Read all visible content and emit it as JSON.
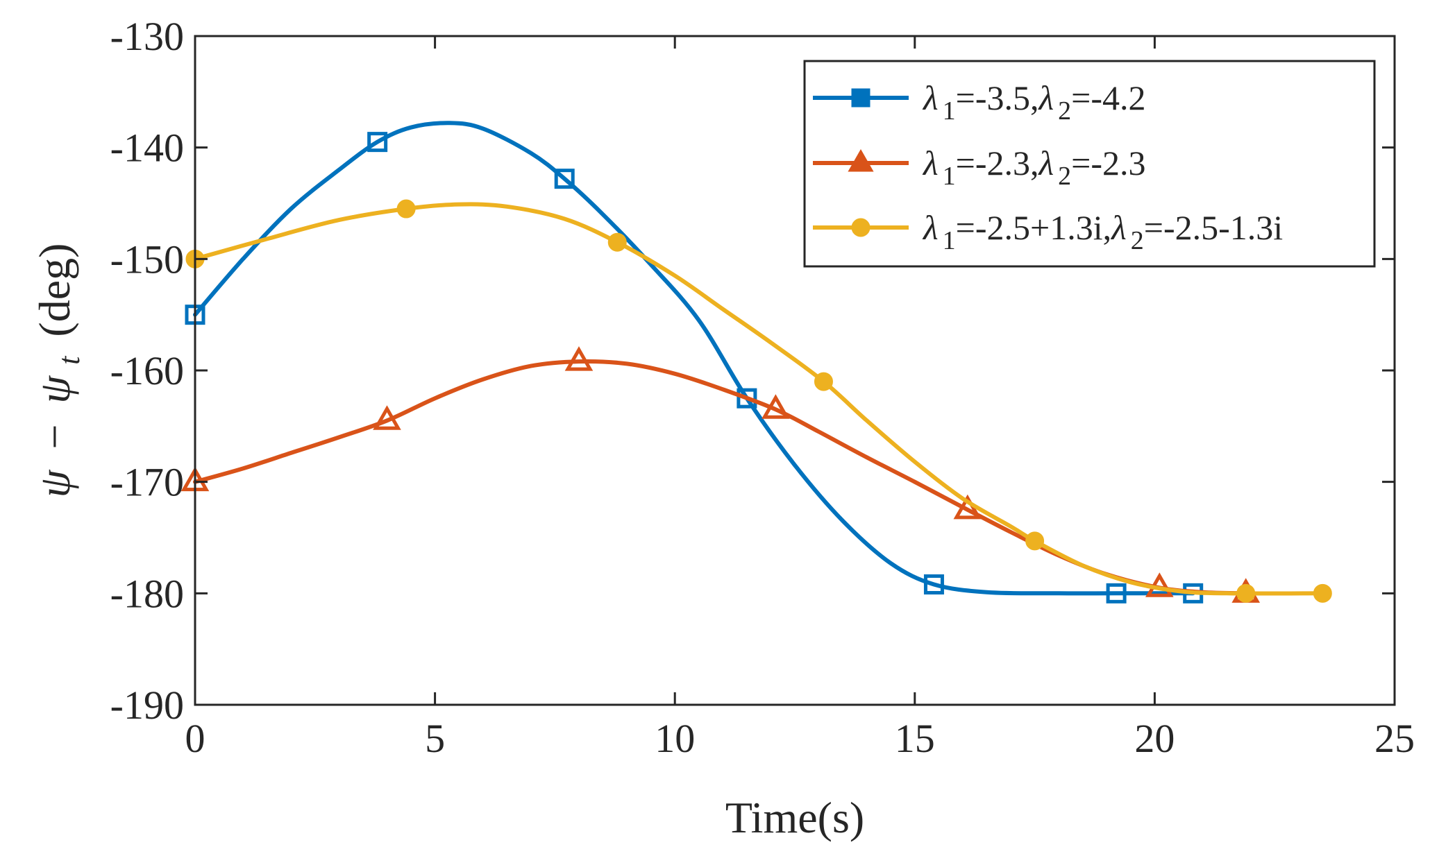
{
  "chart_data": {
    "type": "line",
    "title": "",
    "xlabel": "Time(s)",
    "ylabel": {
      "psi": "ψ",
      "minus": "−",
      "psi_t": "ψ",
      "sub": "t",
      "units": "(deg)"
    },
    "xlim": [
      0,
      25
    ],
    "ylim": [
      -190,
      -130
    ],
    "xticks": [
      0,
      5,
      10,
      15,
      20,
      25
    ],
    "xtick_labels": [
      "0",
      "5",
      "10",
      "15",
      "20",
      "25"
    ],
    "yticks": [
      -130,
      -140,
      -150,
      -160,
      -170,
      -180,
      -190
    ],
    "ytick_labels": [
      "-130",
      "-140",
      "-150",
      "-160",
      "-170",
      "-180",
      "-190"
    ],
    "grid": false,
    "legend_position": "top-right",
    "series": [
      {
        "name": "λ 1=-3.5,λ 2=-4.2",
        "legend": {
          "lam1": "λ",
          "sub1": "1",
          "val1": "=-3.5,",
          "lam2": "λ",
          "sub2": "2",
          "val2": "=-4.2"
        },
        "color": "#0072BD",
        "marker": "square",
        "curve": [
          [
            0,
            -155
          ],
          [
            1,
            -150
          ],
          [
            2,
            -145.5
          ],
          [
            3,
            -142
          ],
          [
            3.8,
            -139.5
          ],
          [
            4.5,
            -138.2
          ],
          [
            5.3,
            -137.8
          ],
          [
            6,
            -138.3
          ],
          [
            7,
            -140.5
          ],
          [
            7.7,
            -142.8
          ],
          [
            8.5,
            -146
          ],
          [
            9.5,
            -150.5
          ],
          [
            10.5,
            -155.5
          ],
          [
            11.5,
            -162.5
          ],
          [
            12.5,
            -168.5
          ],
          [
            13.5,
            -173.5
          ],
          [
            14.5,
            -177.3
          ],
          [
            15.4,
            -179.2
          ],
          [
            16.5,
            -179.9
          ],
          [
            18,
            -180
          ],
          [
            19.2,
            -180
          ],
          [
            20.8,
            -180
          ]
        ],
        "markers": [
          [
            0,
            -155
          ],
          [
            3.8,
            -139.5
          ],
          [
            7.7,
            -142.8
          ],
          [
            11.5,
            -162.5
          ],
          [
            15.4,
            -179.2
          ],
          [
            19.2,
            -180
          ],
          [
            20.8,
            -180
          ]
        ]
      },
      {
        "name": "λ 1=-2.3,λ 2=-2.3",
        "legend": {
          "lam1": "λ",
          "sub1": "1",
          "val1": "=-2.3,",
          "lam2": "λ",
          "sub2": "2",
          "val2": "=-2.3"
        },
        "color": "#D95319",
        "marker": "triangle",
        "curve": [
          [
            0,
            -170
          ],
          [
            1,
            -168.8
          ],
          [
            2,
            -167.4
          ],
          [
            3,
            -166
          ],
          [
            4,
            -164.5
          ],
          [
            5,
            -162.5
          ],
          [
            6,
            -160.8
          ],
          [
            7,
            -159.6
          ],
          [
            8,
            -159.2
          ],
          [
            9,
            -159.4
          ],
          [
            10,
            -160.3
          ],
          [
            11,
            -161.7
          ],
          [
            12.1,
            -163.5
          ],
          [
            13,
            -165.5
          ],
          [
            14,
            -167.8
          ],
          [
            15,
            -170
          ],
          [
            16.1,
            -172.5
          ],
          [
            17,
            -174.5
          ],
          [
            18,
            -176.6
          ],
          [
            19,
            -178.3
          ],
          [
            20.1,
            -179.5
          ],
          [
            21,
            -179.9
          ],
          [
            21.9,
            -180
          ]
        ],
        "markers": [
          [
            0,
            -170
          ],
          [
            4,
            -164.5
          ],
          [
            8,
            -159.2
          ],
          [
            12.1,
            -163.5
          ],
          [
            16.1,
            -172.5
          ],
          [
            20.1,
            -179.5
          ],
          [
            21.9,
            -180
          ]
        ]
      },
      {
        "name": "λ 1=-2.5+1.3i,λ 2=-2.5-1.3i",
        "legend": {
          "lam1": "λ",
          "sub1": "1",
          "val1": "=-2.5+1.3i,",
          "lam2": "λ",
          "sub2": "2",
          "val2": "=-2.5-1.3i"
        },
        "color": "#EDB120",
        "marker": "circle",
        "curve": [
          [
            0,
            -150
          ],
          [
            1.5,
            -148.2
          ],
          [
            3,
            -146.5
          ],
          [
            4.4,
            -145.5
          ],
          [
            5.5,
            -145.1
          ],
          [
            6.5,
            -145.3
          ],
          [
            7.7,
            -146.4
          ],
          [
            8.8,
            -148.5
          ],
          [
            10,
            -151.5
          ],
          [
            11,
            -154.5
          ],
          [
            12,
            -157.5
          ],
          [
            13.1,
            -161
          ],
          [
            14,
            -164.5
          ],
          [
            15,
            -168.2
          ],
          [
            16,
            -171.5
          ],
          [
            17,
            -174
          ],
          [
            17.5,
            -175.3
          ],
          [
            18.5,
            -177.5
          ],
          [
            19.5,
            -179
          ],
          [
            20.5,
            -179.8
          ],
          [
            21.5,
            -180
          ],
          [
            23.5,
            -180
          ]
        ],
        "markers": [
          [
            0,
            -150
          ],
          [
            4.4,
            -145.5
          ],
          [
            8.8,
            -148.5
          ],
          [
            13.1,
            -161
          ],
          [
            17.5,
            -175.3
          ],
          [
            21.9,
            -180
          ],
          [
            23.5,
            -180
          ]
        ]
      }
    ]
  }
}
